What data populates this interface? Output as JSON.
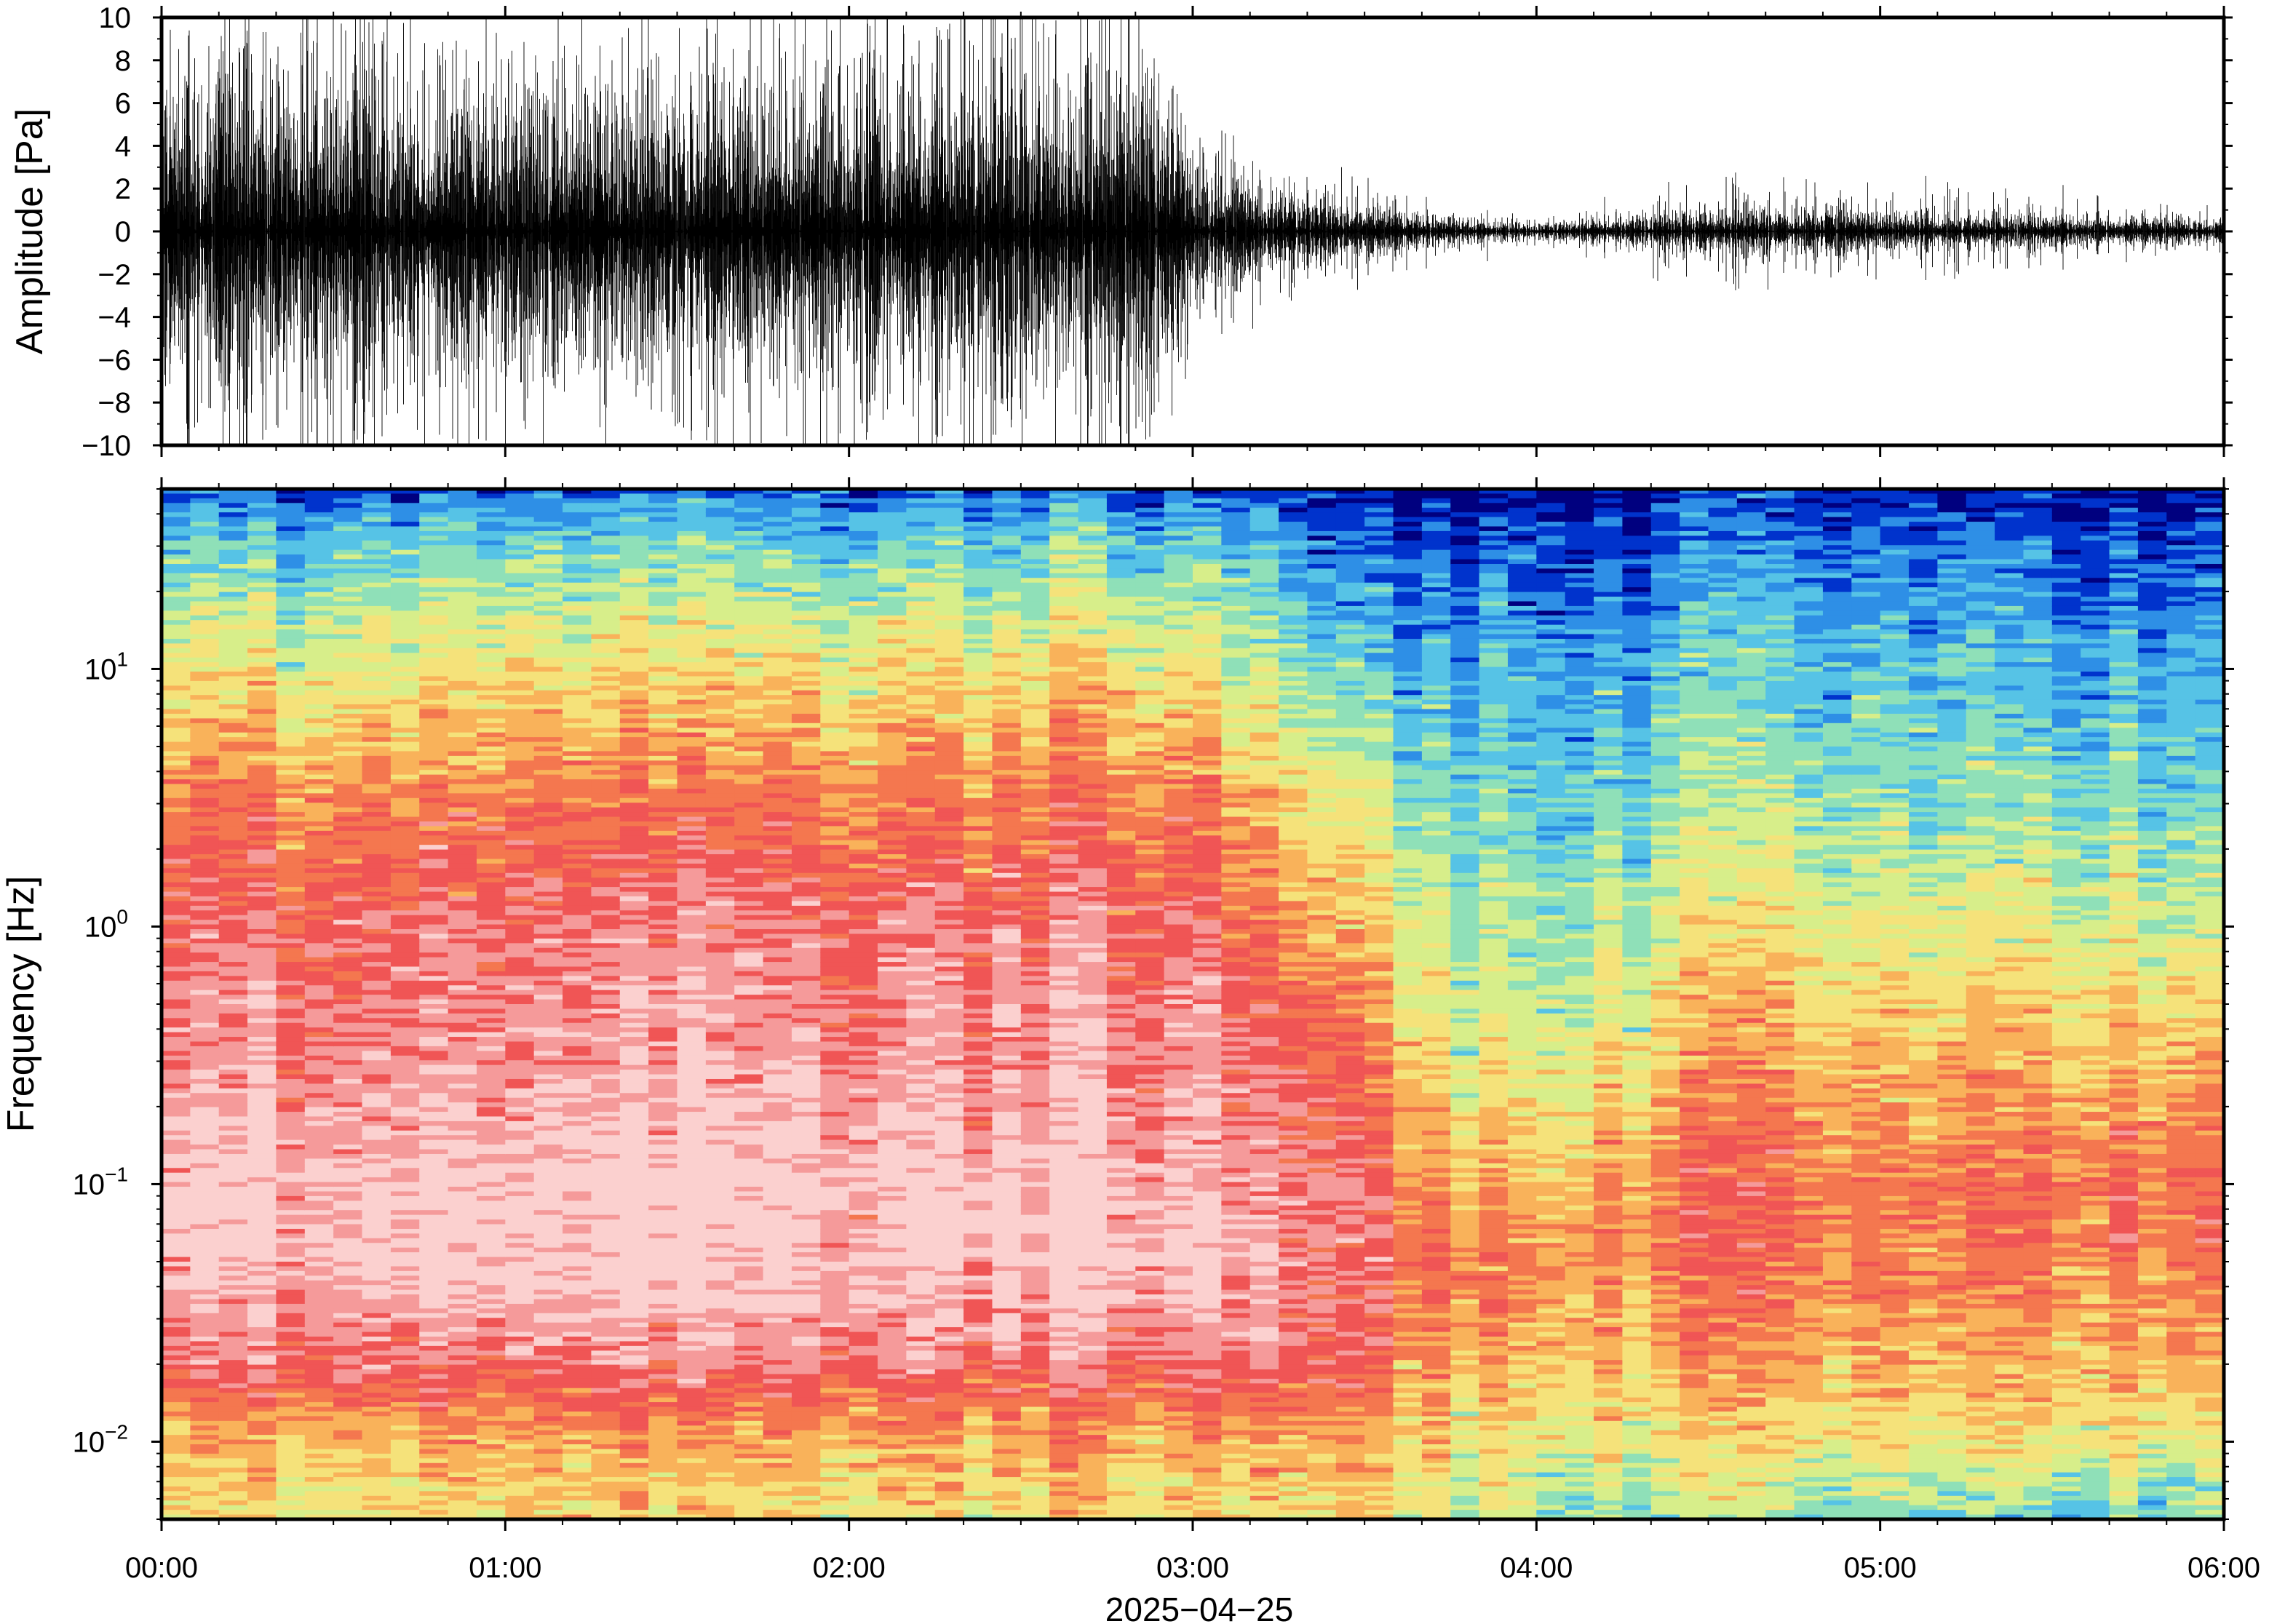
{
  "chart_data": [
    {
      "type": "line",
      "panel": "waveform",
      "ylabel": "Amplitude [Pa]",
      "ylim": [
        -10,
        10
      ],
      "y_ticks": [
        -10,
        -8,
        -6,
        -4,
        -2,
        0,
        2,
        4,
        6,
        8,
        10
      ],
      "y_tick_labels": [
        "−10",
        "−8",
        "−6",
        "−4",
        "−2",
        "0",
        "2",
        "4",
        "6",
        "8",
        "10"
      ],
      "x_range_hours": [
        0,
        6
      ],
      "x_tick_labels": [
        "00:00",
        "01:00",
        "02:00",
        "03:00",
        "04:00",
        "05:00",
        "06:00"
      ],
      "envelope": {
        "hours": [
          0.0,
          0.5,
          1.0,
          1.5,
          2.0,
          2.5,
          2.95,
          3.0,
          3.1,
          3.3,
          3.5,
          3.7,
          4.0,
          4.3,
          4.6,
          5.0,
          5.5,
          6.0
        ],
        "typical_amp": [
          5.0,
          5.5,
          5.0,
          5.5,
          5.0,
          5.5,
          5.5,
          2.5,
          2.0,
          1.3,
          0.9,
          0.5,
          0.3,
          0.6,
          0.9,
          0.7,
          0.6,
          0.4
        ],
        "peak_amp": [
          10,
          10,
          10,
          10,
          10,
          10,
          10,
          4.5,
          4.0,
          3.0,
          2.2,
          1.5,
          0.8,
          1.8,
          2.6,
          2.2,
          1.8,
          1.0
        ]
      },
      "color": "#000000"
    },
    {
      "type": "heatmap",
      "panel": "spectrogram",
      "ylabel": "Frequency [Hz]",
      "y_scale": "log",
      "ylim": [
        0.005,
        50
      ],
      "y_ticks": [
        0.01,
        0.1,
        1,
        10
      ],
      "y_tick_labels": [
        {
          "base": "10",
          "exp": "−2"
        },
        {
          "base": "10",
          "exp": "−1"
        },
        {
          "base": "10",
          "exp": "0"
        },
        {
          "base": "10",
          "exp": "1"
        }
      ],
      "x_range_hours": [
        0,
        6
      ],
      "x_tick_labels": [
        "00:00",
        "01:00",
        "02:00",
        "03:00",
        "04:00",
        "05:00",
        "06:00"
      ],
      "xlabel": "2025−04−25",
      "colormap": [
        "#00007f",
        "#0033cc",
        "#2e8fe6",
        "#56c3e6",
        "#8fe0b8",
        "#d7ee8a",
        "#f5e27a",
        "#f9b25a",
        "#f4774f",
        "#f05555",
        "#f59a9a",
        "#fbd0cf"
      ],
      "time_hours": [
        0,
        0.5,
        1.0,
        1.5,
        2.0,
        2.5,
        3.0,
        3.12,
        3.48,
        3.7,
        4.0,
        4.3,
        4.6,
        5.0,
        5.5,
        6.0
      ],
      "level_at_freq": {
        "freqs_hz": [
          0.005,
          0.01,
          0.02,
          0.05,
          0.1,
          0.3,
          1.0,
          3.0,
          10.0,
          30.0,
          50.0
        ],
        "levels_at_times": [
          [
            6.0,
            7.0,
            9.5,
            11.0,
            11.0,
            10.0,
            9.5,
            8.0,
            6.0,
            3.5,
            1.5
          ],
          [
            6.0,
            7.0,
            9.5,
            11.0,
            11.0,
            10.0,
            9.5,
            8.0,
            6.0,
            3.5,
            1.5
          ],
          [
            6.0,
            7.0,
            9.5,
            11.0,
            11.0,
            10.0,
            9.5,
            8.0,
            6.0,
            3.5,
            1.5
          ],
          [
            6.0,
            7.0,
            9.5,
            11.0,
            11.0,
            10.0,
            9.5,
            8.0,
            6.0,
            3.5,
            1.5
          ],
          [
            6.0,
            7.0,
            9.5,
            11.0,
            11.0,
            10.0,
            9.5,
            8.0,
            6.0,
            3.5,
            1.5
          ],
          [
            6.0,
            7.0,
            9.5,
            11.0,
            11.0,
            10.0,
            9.5,
            8.0,
            6.0,
            3.5,
            1.5
          ],
          [
            6.0,
            7.0,
            9.5,
            11.0,
            10.5,
            10.0,
            9.5,
            8.0,
            6.0,
            3.5,
            1.5
          ],
          [
            6.0,
            7.0,
            9.5,
            10.5,
            10.0,
            9.5,
            8.5,
            7.0,
            5.0,
            3.0,
            1.2
          ],
          [
            6.0,
            7.0,
            8.5,
            9.0,
            9.0,
            8.0,
            6.5,
            5.0,
            3.0,
            1.0,
            0.3
          ],
          [
            5.0,
            6.0,
            7.0,
            8.0,
            7.0,
            5.5,
            4.5,
            3.5,
            2.5,
            1.0,
            0.0
          ],
          [
            4.0,
            5.5,
            6.5,
            7.5,
            6.5,
            5.0,
            4.0,
            3.0,
            2.5,
            1.0,
            0.0
          ],
          [
            4.5,
            6.0,
            7.0,
            8.0,
            8.0,
            6.5,
            5.0,
            4.0,
            3.0,
            1.5,
            0.5
          ],
          [
            4.5,
            6.0,
            7.5,
            8.5,
            8.5,
            7.5,
            6.0,
            4.5,
            3.5,
            2.0,
            1.0
          ],
          [
            4.0,
            6.0,
            7.0,
            8.0,
            8.0,
            7.0,
            5.5,
            4.2,
            3.2,
            1.8,
            0.8
          ],
          [
            3.5,
            6.0,
            7.0,
            8.0,
            8.5,
            7.0,
            5.5,
            4.0,
            3.0,
            1.5,
            0.6
          ],
          [
            3.5,
            5.5,
            7.0,
            8.0,
            8.5,
            7.0,
            5.0,
            3.5,
            2.5,
            1.0,
            0.4
          ]
        ]
      }
    }
  ]
}
